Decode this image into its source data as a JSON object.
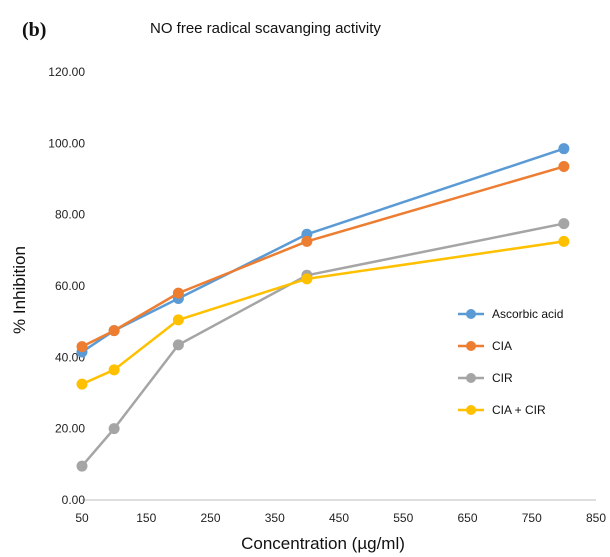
{
  "panel_label": "(b)",
  "chart_data": {
    "type": "line",
    "title": "NO free radical scavanging activity",
    "xlabel": "Concentration (µg/ml)",
    "ylabel": "% Inhibition",
    "xlim": [
      50,
      850
    ],
    "ylim": [
      0,
      120
    ],
    "x_ticks": [
      "50",
      "150",
      "250",
      "350",
      "450",
      "550",
      "650",
      "750",
      "850"
    ],
    "y_ticks": [
      "0.00",
      "20.00",
      "40.00",
      "60.00",
      "80.00",
      "100.00",
      "120.00"
    ],
    "grid": false,
    "legend_position": "right",
    "x": [
      50,
      100,
      200,
      400,
      800
    ],
    "series": [
      {
        "name": "Ascorbic acid",
        "color": "#5b9bd5",
        "values": [
          41.5,
          47.5,
          56.5,
          74.5,
          98.5
        ]
      },
      {
        "name": "CIA",
        "color": "#ed7d31",
        "values": [
          43.0,
          47.5,
          58.0,
          72.5,
          93.5
        ]
      },
      {
        "name": "CIR",
        "color": "#a5a5a5",
        "values": [
          9.5,
          20.0,
          43.5,
          63.0,
          77.5
        ]
      },
      {
        "name": "CIA + CIR",
        "color": "#ffc000",
        "values": [
          32.5,
          36.5,
          50.5,
          62.0,
          72.5
        ]
      }
    ]
  }
}
